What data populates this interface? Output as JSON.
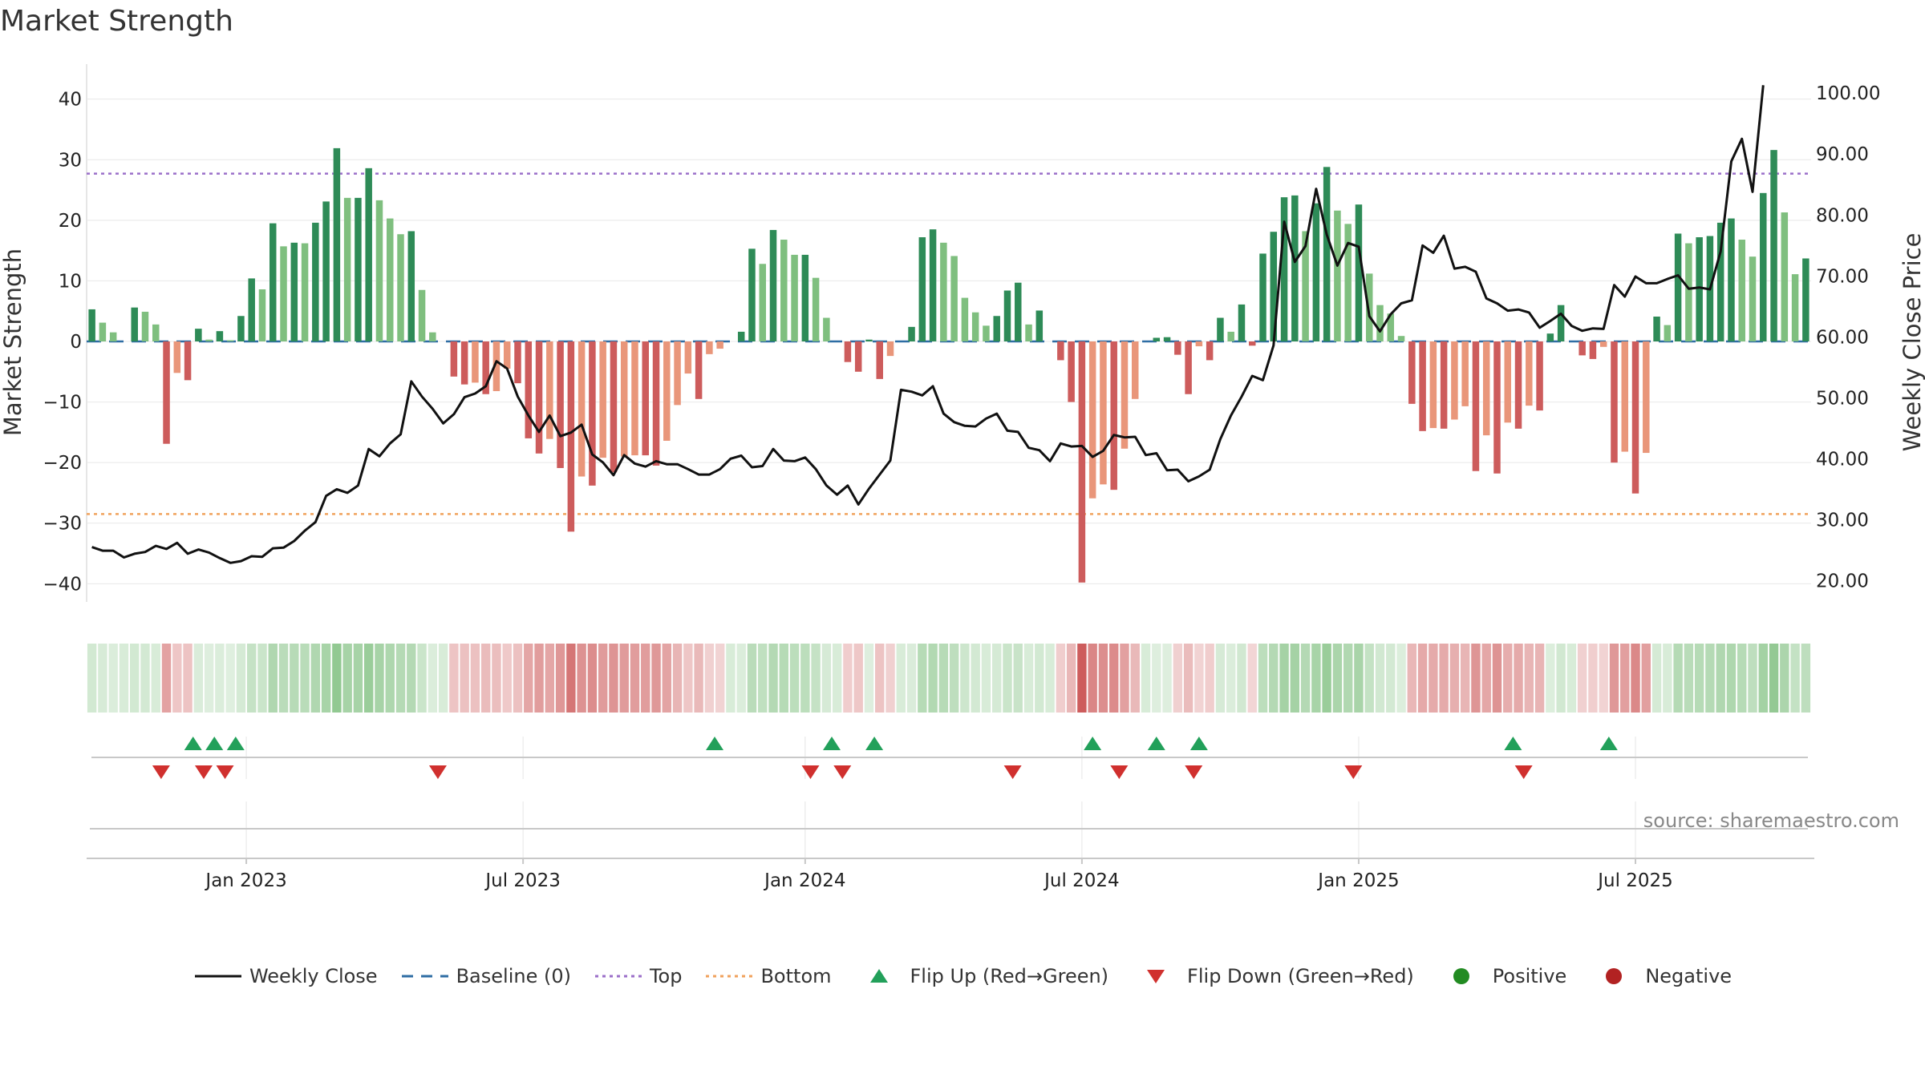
{
  "title": "Market Strength",
  "source": "source: sharemaestro.com",
  "colors": {
    "line": "#111111",
    "baseline": "#2e6da4",
    "top": "#9b6fc9",
    "bottom": "#f0a25c",
    "strong_green": "#2e8b57",
    "light_green": "#7fbf7f",
    "strong_red": "#cd5c5c",
    "light_red": "#e9967a",
    "flip_up": "#22a05a",
    "flip_down": "#d0302e",
    "positive": "#228b22",
    "negative": "#b22222"
  },
  "legend": [
    {
      "label": "Weekly Close",
      "kind": "solid-line",
      "color": "#111111"
    },
    {
      "label": "Baseline (0)",
      "kind": "dash-line",
      "color": "#2e6da4"
    },
    {
      "label": "Top",
      "kind": "dot-line",
      "color": "#9b6fc9"
    },
    {
      "label": "Bottom",
      "kind": "dot-line",
      "color": "#f0a25c"
    },
    {
      "label": "Flip Up (Red→Green)",
      "kind": "tri-up",
      "color": "#22a05a"
    },
    {
      "label": "Flip Down (Green→Red)",
      "kind": "tri-down",
      "color": "#d0302e"
    },
    {
      "label": "Positive",
      "kind": "circle",
      "color": "#228b22"
    },
    {
      "label": "Negative",
      "kind": "circle",
      "color": "#b22222"
    }
  ],
  "chart_data": {
    "type": "bar",
    "title": "Market Strength",
    "ylabel": "Market Strength",
    "y2label": "Weekly Close Price",
    "ylim": [
      -43,
      43
    ],
    "y_ticks": [
      "40",
      "30",
      "20",
      "10",
      "0",
      "−10",
      "−20",
      "−30",
      "−40"
    ],
    "y2lim": [
      16.5,
      102
    ],
    "y2_ticks": [
      "100.00",
      "90.00",
      "80.00",
      "70.00",
      "60.00",
      "50.00",
      "40.00",
      "30.00",
      "20.00"
    ],
    "x_ticks": [
      "Jan 2023",
      "Jul 2023",
      "Jan 2024",
      "Jul 2024",
      "Jan 2025",
      "Jul 2025"
    ],
    "x_tick_weeks": [
      15,
      41,
      67.5,
      93.5,
      119.5,
      145.5
    ],
    "baseline": 0,
    "top_threshold": 27.7,
    "bottom_threshold": -28.5,
    "strength": [
      5.3,
      3.1,
      1.5,
      0,
      5.6,
      4.9,
      2.8,
      -16.9,
      -5.2,
      -6.4,
      2.1,
      0.3,
      1.7,
      0.2,
      4.2,
      10.4,
      8.6,
      19.5,
      15.7,
      16.3,
      16.2,
      19.6,
      23.1,
      31.9,
      23.7,
      23.7,
      28.6,
      23.3,
      20.3,
      17.7,
      18.2,
      8.5,
      1.5,
      0,
      -5.8,
      -7.1,
      -6.8,
      -8.7,
      -8.2,
      -4.5,
      -6.9,
      -16,
      -18.5,
      -16.1,
      -20.9,
      -31.4,
      -22.3,
      -23.8,
      -19.2,
      -21.6,
      -19,
      -18.8,
      -18.8,
      -20.5,
      -16.4,
      -10.5,
      -5.3,
      -9.5,
      -2.1,
      -1.2,
      0,
      1.6,
      15.3,
      12.8,
      18.4,
      16.8,
      14.3,
      14.3,
      10.5,
      3.9,
      0,
      -3.4,
      -5,
      0.3,
      -6.2,
      -2.4,
      0,
      2.4,
      17.2,
      18.5,
      16.3,
      14.1,
      7.2,
      4.8,
      2.6,
      4.2,
      8.4,
      9.7,
      2.8,
      5.1,
      0,
      -3.1,
      -10,
      -39.8,
      -25.9,
      -23.6,
      -24.5,
      -17.7,
      -9.5,
      0,
      0.6,
      0.7,
      -2.2,
      -8.7,
      -0.8,
      -3.1,
      3.9,
      1.6,
      6.1,
      -0.7,
      14.5,
      18.1,
      23.8,
      24.1,
      18.2,
      22.8,
      28.8,
      21.6,
      19.4,
      22.6,
      11.2,
      6,
      4.6,
      0.9,
      -10.3,
      -14.8,
      -14.3,
      -14.4,
      -12.9,
      -10.7,
      -21.4,
      -15.5,
      -21.8,
      -13.4,
      -14.4,
      -10.6,
      -11.4,
      1.3,
      6,
      0,
      -2.3,
      -2.9,
      -0.9,
      -20,
      -18.2,
      -25.1,
      -18.4,
      4.1,
      2.7,
      17.8,
      16.2,
      17.2,
      17.4,
      19.6,
      20.3,
      16.8,
      14,
      24.5,
      31.6,
      21.3,
      11.1,
      13.7
    ],
    "weekly_close": [
      25.5,
      24.9,
      24.9,
      23.8,
      24.4,
      24.7,
      25.7,
      25.2,
      26.2,
      24.4,
      25.1,
      24.6,
      23.7,
      22.9,
      23.2,
      24.0,
      23.9,
      25.3,
      25.4,
      26.5,
      28.2,
      29.6,
      33.9,
      35.0,
      34.4,
      35.6,
      41.6,
      40.4,
      42.5,
      44.0,
      52.7,
      50.2,
      48.2,
      45.8,
      47.3,
      50.1,
      50.7,
      51.9,
      56.0,
      54.8,
      50.2,
      47.1,
      44.4,
      47.1,
      43.7,
      44.3,
      45.6,
      40.7,
      39.4,
      37.3,
      40.6,
      39.2,
      38.7,
      39.6,
      39.1,
      39.1,
      38.3,
      37.4,
      37.4,
      38.3,
      40.0,
      40.5,
      38.6,
      38.8,
      41.6,
      39.7,
      39.6,
      40.2,
      38.3,
      35.6,
      34.1,
      35.6,
      32.5,
      35.1,
      37.4,
      39.7,
      51.3,
      51.0,
      50.4,
      51.9,
      47.4,
      46.0,
      45.4,
      45.3,
      46.6,
      47.4,
      44.6,
      44.4,
      41.8,
      41.4,
      39.6,
      42.5,
      42.0,
      42.1,
      40.3,
      41.3,
      43.9,
      43.5,
      43.6,
      40.6,
      40.9,
      38.1,
      38.2,
      36.3,
      37.1,
      38.2,
      43.2,
      47.1,
      50.2,
      53.6,
      52.9,
      58.6,
      78.9,
      72.3,
      74.9,
      84.3,
      76.8,
      71.7,
      75.4,
      74.8,
      63.4,
      60.9,
      63.7,
      65.5,
      66.0,
      75.0,
      73.8,
      76.6,
      71.2,
      71.5,
      70.7,
      66.3,
      65.5,
      64.3,
      64.5,
      64.0,
      61.5,
      62.6,
      63.8,
      61.8,
      61.0,
      61.4,
      61.3,
      68.5,
      66.6,
      69.9,
      68.8,
      68.8,
      69.5,
      70.1,
      67.9,
      68.1,
      67.8,
      74.0,
      88.8,
      92.5,
      83.8,
      101.3
    ],
    "flip_up_weeks": [
      10,
      12,
      14,
      59,
      70,
      74,
      94.5,
      100.5,
      104.5,
      134,
      143
    ],
    "flip_down_weeks": [
      7,
      11,
      13,
      33,
      68,
      71,
      87,
      97,
      104,
      119,
      135
    ]
  }
}
